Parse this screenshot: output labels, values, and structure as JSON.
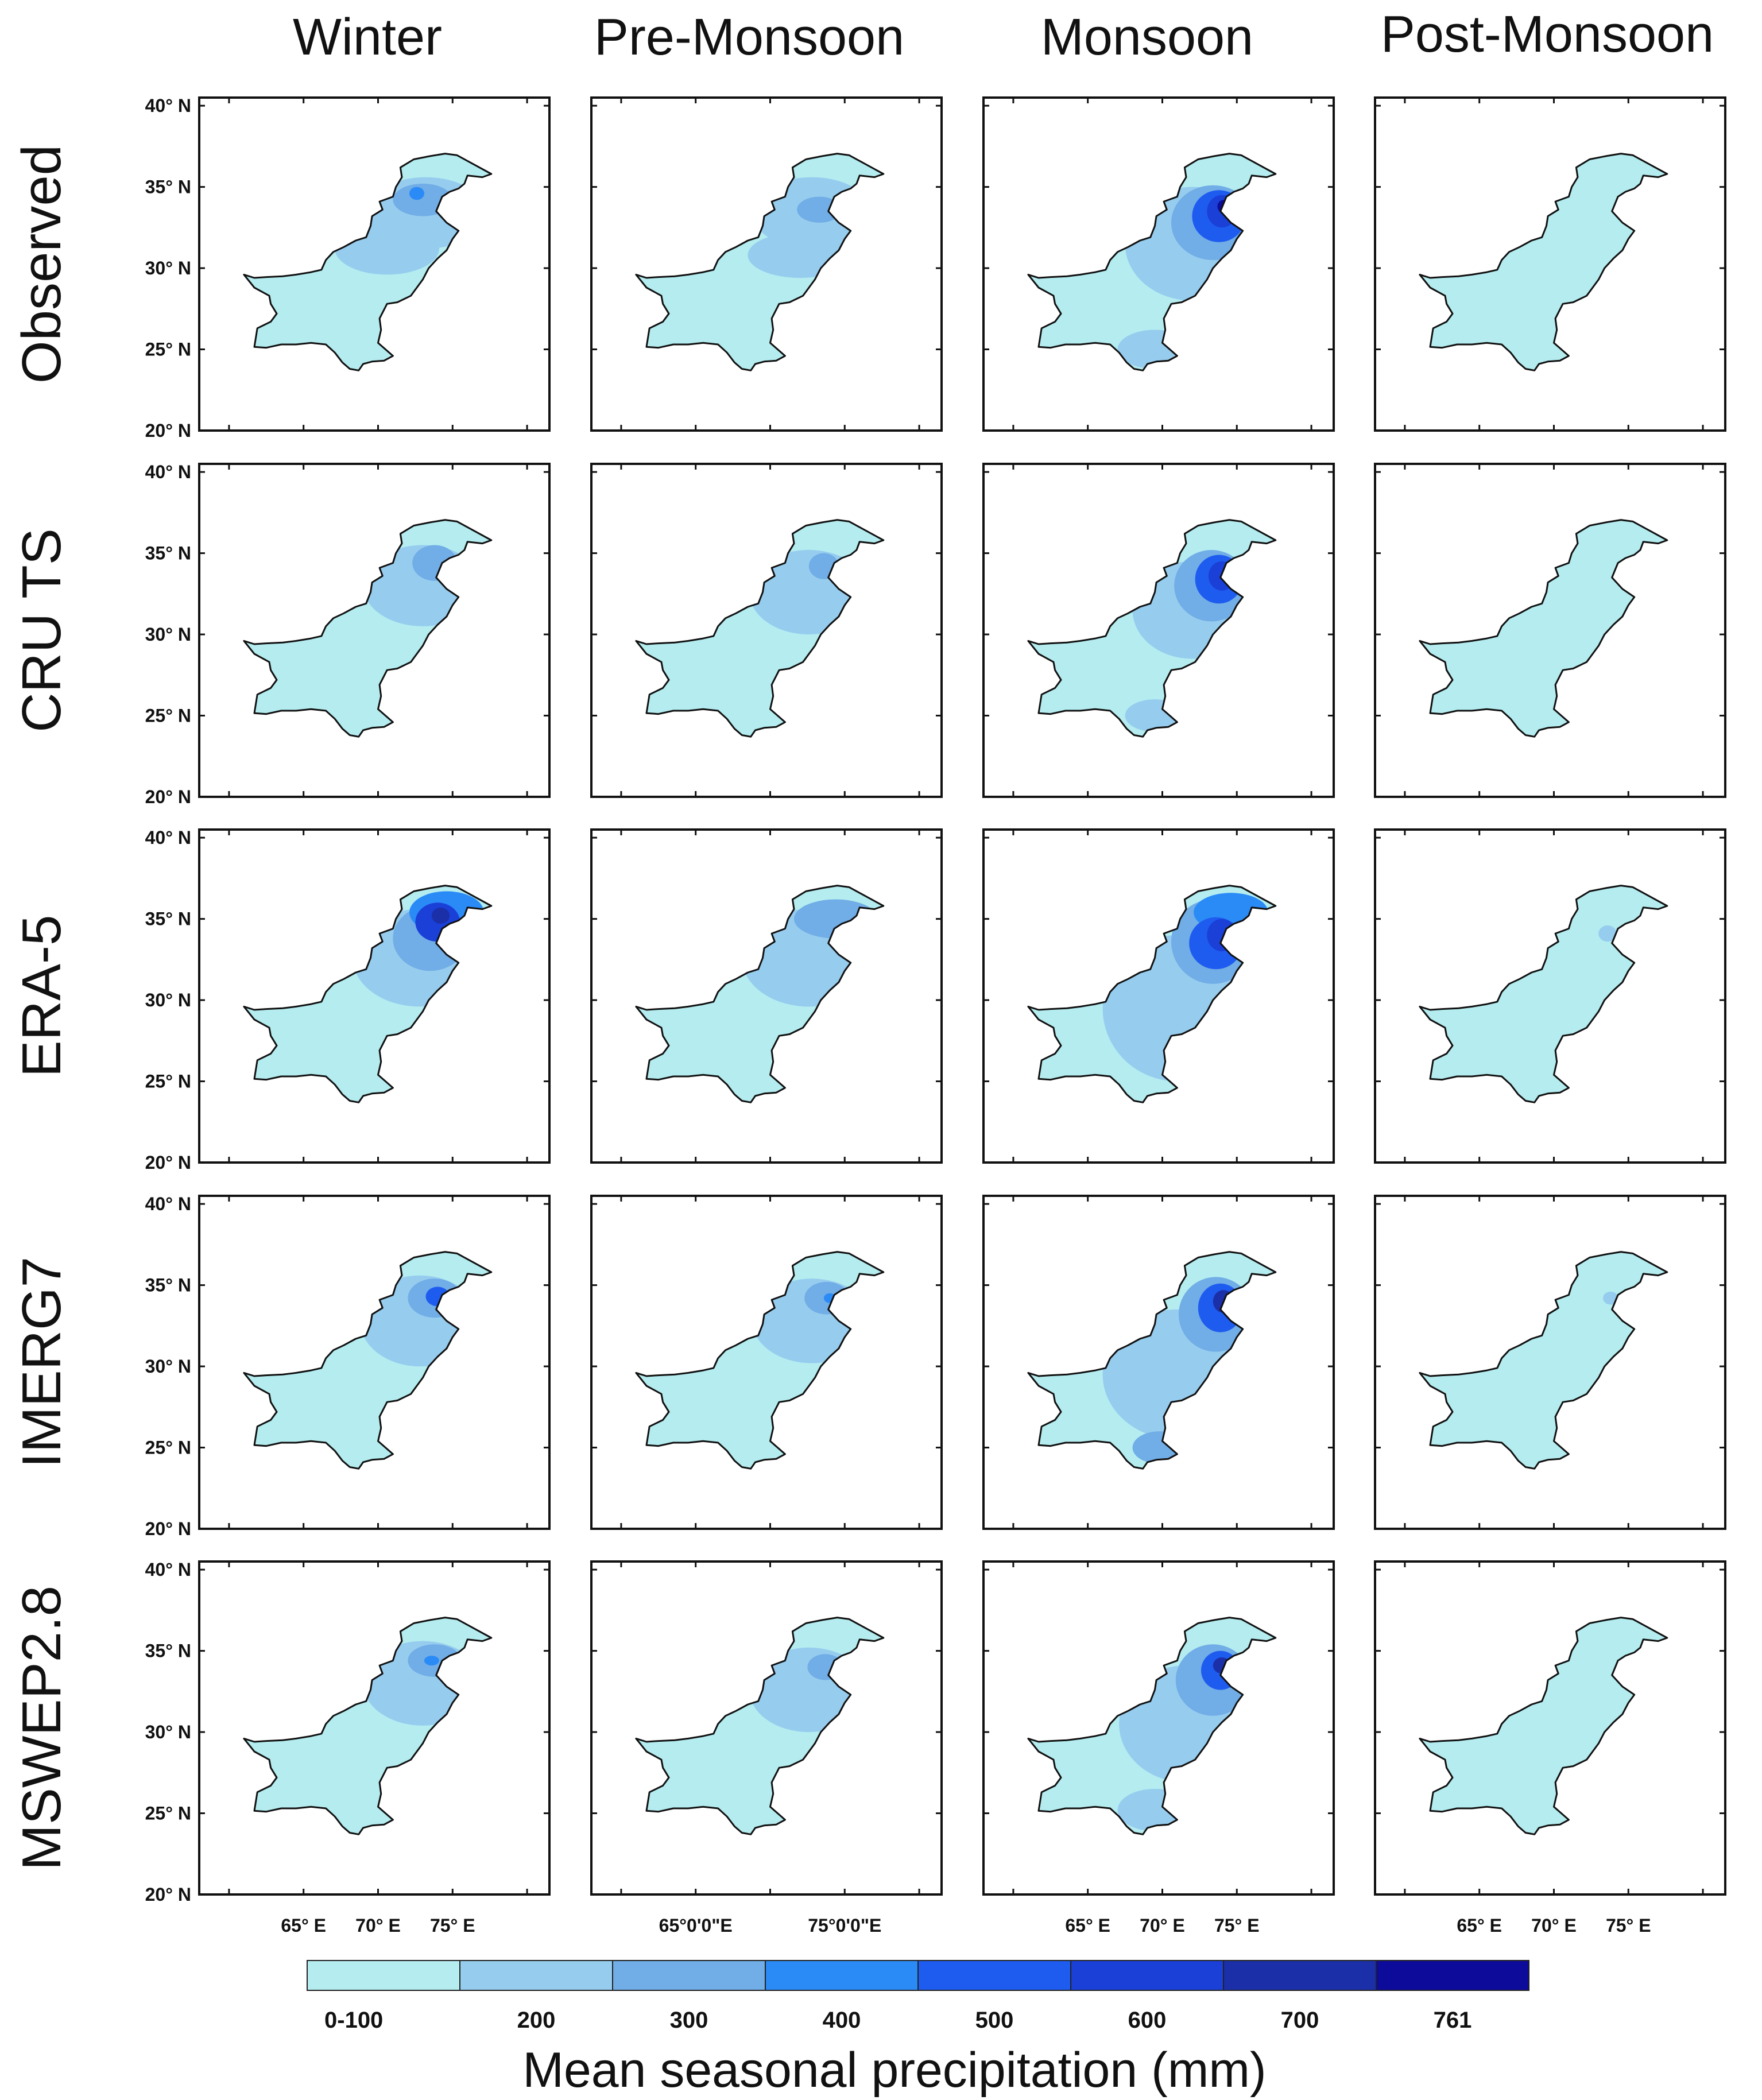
{
  "figure": {
    "columns": [
      "Winter",
      "Pre-Monsoon",
      "Monsoon",
      "Post-Monsoon"
    ],
    "rows": [
      "Observed",
      "CRU TS",
      "ERA-5",
      "IMERG7",
      "MSWEP2.8"
    ],
    "lat_labels": [
      "40° N",
      "35° N",
      "30° N",
      "25° N",
      "20° N"
    ],
    "lon_labels": {
      "Winter": [
        "65° E",
        "70° E",
        "75° E"
      ],
      "Pre-Monsoon": [
        "65°0'0\"E",
        "75°0'0\"E"
      ],
      "Monsoon": [
        "65° E",
        "70° E",
        "75° E"
      ],
      "Post-Monsoon": [
        "65° E",
        "70° E",
        "75° E"
      ]
    }
  },
  "legend": {
    "title": "Mean seasonal precipitation (mm)",
    "labels": [
      "0-100",
      "200",
      "300",
      "400",
      "500",
      "600",
      "700",
      "761"
    ],
    "colors": [
      "#b4ecf0",
      "#96ccee",
      "#71ade6",
      "#2b8bf6",
      "#1e5cf0",
      "#1a40d8",
      "#1b30a8",
      "#0d0b9a"
    ]
  },
  "colors": {
    "country_base": "#b4ecf0",
    "outline": "#111111"
  },
  "map_data": {
    "Observed": {
      "Winter": [
        {
          "type": "ellipse",
          "lon": 73.2,
          "lat": 33.4,
          "rx": 4.0,
          "ry": 2.2,
          "level": 1
        },
        {
          "type": "ellipse",
          "lon": 70.6,
          "lat": 31.2,
          "rx": 3.5,
          "ry": 1.6,
          "level": 1
        },
        {
          "type": "ellipse",
          "lon": 73.0,
          "lat": 34.2,
          "rx": 2.0,
          "ry": 1.0,
          "level": 2
        },
        {
          "type": "ellipse",
          "lon": 72.6,
          "lat": 34.6,
          "rx": 0.5,
          "ry": 0.4,
          "level": 3
        }
      ],
      "Pre-Monsoon": [
        {
          "type": "ellipse",
          "lon": 72.8,
          "lat": 33.4,
          "rx": 4.0,
          "ry": 2.2,
          "level": 1
        },
        {
          "type": "ellipse",
          "lon": 72.0,
          "lat": 30.8,
          "rx": 3.5,
          "ry": 1.4,
          "level": 1
        },
        {
          "type": "ellipse",
          "lon": 73.3,
          "lat": 33.6,
          "rx": 1.5,
          "ry": 0.8,
          "level": 2
        }
      ],
      "Monsoon": [
        {
          "type": "ellipse",
          "lon": 72.0,
          "lat": 31.5,
          "rx": 4.5,
          "ry": 3.5,
          "level": 1
        },
        {
          "type": "ellipse",
          "lon": 69.5,
          "lat": 25.0,
          "rx": 2.5,
          "ry": 1.2,
          "level": 1
        },
        {
          "type": "ellipse",
          "lon": 73.4,
          "lat": 32.8,
          "rx": 2.8,
          "ry": 2.3,
          "level": 2
        },
        {
          "type": "ellipse",
          "lon": 73.8,
          "lat": 33.2,
          "rx": 1.8,
          "ry": 1.6,
          "level": 4
        },
        {
          "type": "ellipse",
          "lon": 74.0,
          "lat": 33.5,
          "rx": 1.0,
          "ry": 1.0,
          "level": 5
        },
        {
          "type": "ellipse",
          "lon": 74.1,
          "lat": 33.8,
          "rx": 0.4,
          "ry": 0.4,
          "level": 7
        }
      ],
      "Post-Monsoon": []
    },
    "CRU TS": {
      "Winter": [
        {
          "type": "ellipse",
          "lon": 73.0,
          "lat": 33.0,
          "rx": 4.0,
          "ry": 2.5,
          "level": 1
        },
        {
          "type": "ellipse",
          "lon": 73.8,
          "lat": 34.4,
          "rx": 1.5,
          "ry": 1.1,
          "level": 2
        }
      ],
      "Pre-Monsoon": [
        {
          "type": "ellipse",
          "lon": 72.6,
          "lat": 32.6,
          "rx": 4.0,
          "ry": 2.6,
          "level": 1
        },
        {
          "type": "ellipse",
          "lon": 73.6,
          "lat": 34.2,
          "rx": 1.0,
          "ry": 0.8,
          "level": 2
        }
      ],
      "Monsoon": [
        {
          "type": "ellipse",
          "lon": 72.0,
          "lat": 31.5,
          "rx": 4.0,
          "ry": 3.0,
          "level": 1
        },
        {
          "type": "ellipse",
          "lon": 69.5,
          "lat": 25.0,
          "rx": 2.0,
          "ry": 1.0,
          "level": 1
        },
        {
          "type": "ellipse",
          "lon": 73.3,
          "lat": 33.0,
          "rx": 2.5,
          "ry": 2.2,
          "level": 2
        },
        {
          "type": "ellipse",
          "lon": 73.8,
          "lat": 33.4,
          "rx": 1.6,
          "ry": 1.5,
          "level": 4
        },
        {
          "type": "ellipse",
          "lon": 74.0,
          "lat": 33.6,
          "rx": 0.9,
          "ry": 0.9,
          "level": 5
        }
      ],
      "Post-Monsoon": []
    },
    "ERA-5": {
      "Winter": [
        {
          "type": "ellipse",
          "lon": 72.8,
          "lat": 32.6,
          "rx": 4.5,
          "ry": 3.0,
          "level": 1
        },
        {
          "type": "ellipse",
          "lon": 73.5,
          "lat": 33.8,
          "rx": 2.5,
          "ry": 2.0,
          "level": 2
        },
        {
          "type": "ellipse",
          "lon": 74.6,
          "lat": 35.4,
          "rx": 2.5,
          "ry": 1.3,
          "level": 3
        },
        {
          "type": "ellipse",
          "lon": 74.0,
          "lat": 34.8,
          "rx": 1.5,
          "ry": 1.2,
          "level": 5
        },
        {
          "type": "ellipse",
          "lon": 74.2,
          "lat": 35.2,
          "rx": 0.6,
          "ry": 0.5,
          "level": 6
        }
      ],
      "Pre-Monsoon": [
        {
          "type": "ellipse",
          "lon": 72.6,
          "lat": 32.6,
          "rx": 4.5,
          "ry": 3.0,
          "level": 1
        },
        {
          "type": "ellipse",
          "lon": 74.4,
          "lat": 35.0,
          "rx": 2.8,
          "ry": 1.2,
          "level": 2
        }
      ],
      "Monsoon": [
        {
          "type": "ellipse",
          "lon": 71.0,
          "lat": 29.5,
          "rx": 5.0,
          "ry": 4.5,
          "level": 1
        },
        {
          "type": "ellipse",
          "lon": 73.4,
          "lat": 33.6,
          "rx": 2.8,
          "ry": 2.6,
          "level": 2
        },
        {
          "type": "ellipse",
          "lon": 74.6,
          "lat": 35.4,
          "rx": 2.5,
          "ry": 1.2,
          "level": 3
        },
        {
          "type": "ellipse",
          "lon": 73.6,
          "lat": 33.5,
          "rx": 1.8,
          "ry": 1.6,
          "level": 4
        },
        {
          "type": "ellipse",
          "lon": 74.0,
          "lat": 34.0,
          "rx": 1.0,
          "ry": 1.0,
          "level": 5
        }
      ],
      "Post-Monsoon": [
        {
          "type": "ellipse",
          "lon": 73.6,
          "lat": 34.1,
          "rx": 0.6,
          "ry": 0.5,
          "level": 1
        }
      ]
    },
    "IMERG7": {
      "Winter": [
        {
          "type": "ellipse",
          "lon": 72.8,
          "lat": 32.8,
          "rx": 4.0,
          "ry": 2.8,
          "level": 1
        },
        {
          "type": "ellipse",
          "lon": 73.8,
          "lat": 34.2,
          "rx": 1.8,
          "ry": 1.2,
          "level": 2
        },
        {
          "type": "ellipse",
          "lon": 74.0,
          "lat": 34.3,
          "rx": 0.8,
          "ry": 0.6,
          "level": 4
        }
      ],
      "Pre-Monsoon": [
        {
          "type": "ellipse",
          "lon": 72.8,
          "lat": 32.8,
          "rx": 4.0,
          "ry": 2.6,
          "level": 1
        },
        {
          "type": "ellipse",
          "lon": 73.8,
          "lat": 34.2,
          "rx": 1.5,
          "ry": 1.0,
          "level": 2
        },
        {
          "type": "ellipse",
          "lon": 74.0,
          "lat": 34.2,
          "rx": 0.4,
          "ry": 0.3,
          "level": 3
        }
      ],
      "Monsoon": [
        {
          "type": "ellipse",
          "lon": 71.0,
          "lat": 29.5,
          "rx": 5.0,
          "ry": 4.0,
          "level": 1
        },
        {
          "type": "ellipse",
          "lon": 69.8,
          "lat": 25.0,
          "rx": 1.8,
          "ry": 1.0,
          "level": 2
        },
        {
          "type": "ellipse",
          "lon": 73.6,
          "lat": 33.2,
          "rx": 2.5,
          "ry": 2.3,
          "level": 2
        },
        {
          "type": "ellipse",
          "lon": 73.9,
          "lat": 33.6,
          "rx": 1.5,
          "ry": 1.5,
          "level": 4
        },
        {
          "type": "ellipse",
          "lon": 74.1,
          "lat": 34.0,
          "rx": 0.7,
          "ry": 0.7,
          "level": 6
        }
      ],
      "Post-Monsoon": [
        {
          "type": "ellipse",
          "lon": 73.8,
          "lat": 34.2,
          "rx": 0.5,
          "ry": 0.4,
          "level": 1
        }
      ]
    },
    "MSWEP2.8": {
      "Winter": [
        {
          "type": "ellipse",
          "lon": 73.0,
          "lat": 33.0,
          "rx": 4.0,
          "ry": 2.6,
          "level": 1
        },
        {
          "type": "ellipse",
          "lon": 73.8,
          "lat": 34.4,
          "rx": 1.8,
          "ry": 1.0,
          "level": 2
        },
        {
          "type": "ellipse",
          "lon": 73.6,
          "lat": 34.4,
          "rx": 0.5,
          "ry": 0.3,
          "level": 3
        }
      ],
      "Pre-Monsoon": [
        {
          "type": "ellipse",
          "lon": 72.6,
          "lat": 32.6,
          "rx": 4.0,
          "ry": 2.6,
          "level": 1
        },
        {
          "type": "ellipse",
          "lon": 73.7,
          "lat": 34.0,
          "rx": 1.2,
          "ry": 0.8,
          "level": 2
        }
      ],
      "Monsoon": [
        {
          "type": "ellipse",
          "lon": 71.6,
          "lat": 30.5,
          "rx": 4.5,
          "ry": 3.6,
          "level": 1
        },
        {
          "type": "ellipse",
          "lon": 69.5,
          "lat": 25.2,
          "rx": 2.5,
          "ry": 1.3,
          "level": 1
        },
        {
          "type": "ellipse",
          "lon": 73.4,
          "lat": 33.2,
          "rx": 2.5,
          "ry": 2.2,
          "level": 2
        },
        {
          "type": "ellipse",
          "lon": 73.9,
          "lat": 33.8,
          "rx": 1.3,
          "ry": 1.2,
          "level": 4
        },
        {
          "type": "ellipse",
          "lon": 74.0,
          "lat": 34.1,
          "rx": 0.6,
          "ry": 0.5,
          "level": 6
        }
      ],
      "Post-Monsoon": []
    }
  }
}
